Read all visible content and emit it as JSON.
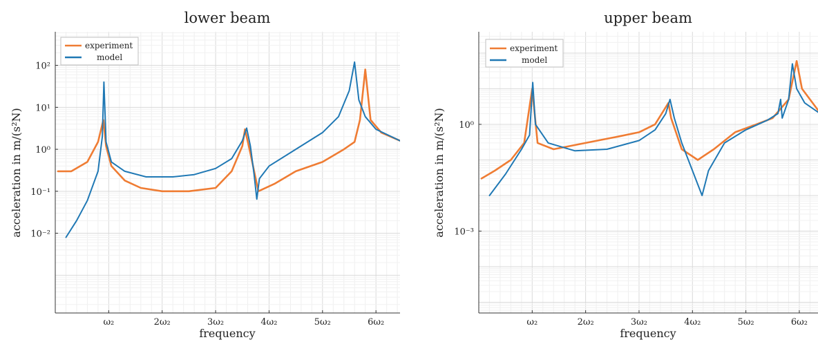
{
  "chart_data": [
    {
      "type": "line",
      "title": "lower beam",
      "xlabel": "frequency",
      "ylabel": "acceleration in m/(s²N)",
      "yscale": "log",
      "xlim": [
        0,
        6.45
      ],
      "ylim_log10": [
        -3.9,
        2.8
      ],
      "grid": true,
      "legend_position": "top-left",
      "x_ticks": [
        {
          "x": 1,
          "label": "ω₂"
        },
        {
          "x": 2,
          "label": "2ω₂"
        },
        {
          "x": 3,
          "label": "3ω₂"
        },
        {
          "x": 4,
          "label": "4ω₂"
        },
        {
          "x": 5,
          "label": "5ω₂"
        },
        {
          "x": 6,
          "label": "6ω₂"
        }
      ],
      "y_ticks": [
        {
          "exp": 2,
          "label": "10²"
        },
        {
          "exp": 1,
          "label": "10¹"
        },
        {
          "exp": 0,
          "label": "10⁰"
        },
        {
          "exp": -1,
          "label": "10⁻¹"
        },
        {
          "exp": -2,
          "label": "10⁻²"
        }
      ],
      "series": [
        {
          "name": "experiment",
          "color": "#ef7c33",
          "points": [
            [
              0.05,
              0.3
            ],
            [
              0.3,
              0.3
            ],
            [
              0.6,
              0.5
            ],
            [
              0.8,
              1.5
            ],
            [
              0.9,
              5.0
            ],
            [
              0.95,
              1.2
            ],
            [
              1.05,
              0.4
            ],
            [
              1.3,
              0.18
            ],
            [
              1.6,
              0.12
            ],
            [
              2.0,
              0.1
            ],
            [
              2.5,
              0.1
            ],
            [
              3.0,
              0.12
            ],
            [
              3.3,
              0.3
            ],
            [
              3.5,
              1.2
            ],
            [
              3.55,
              3.0
            ],
            [
              3.65,
              0.8
            ],
            [
              3.8,
              0.1
            ],
            [
              4.1,
              0.15
            ],
            [
              4.5,
              0.3
            ],
            [
              5.0,
              0.5
            ],
            [
              5.4,
              1.0
            ],
            [
              5.6,
              1.5
            ],
            [
              5.7,
              5.0
            ],
            [
              5.8,
              80
            ],
            [
              5.9,
              5.0
            ],
            [
              6.1,
              2.5
            ],
            [
              6.45,
              1.6
            ]
          ]
        },
        {
          "name": "model",
          "color": "#1f78b4",
          "points": [
            [
              0.2,
              0.008
            ],
            [
              0.4,
              0.02
            ],
            [
              0.6,
              0.06
            ],
            [
              0.8,
              0.3
            ],
            [
              0.88,
              2.0
            ],
            [
              0.91,
              40
            ],
            [
              0.95,
              1.5
            ],
            [
              1.05,
              0.5
            ],
            [
              1.3,
              0.3
            ],
            [
              1.7,
              0.22
            ],
            [
              2.2,
              0.22
            ],
            [
              2.6,
              0.25
            ],
            [
              3.0,
              0.35
            ],
            [
              3.3,
              0.6
            ],
            [
              3.5,
              1.6
            ],
            [
              3.58,
              3.2
            ],
            [
              3.65,
              1.2
            ],
            [
              3.72,
              0.25
            ],
            [
              3.77,
              0.065
            ],
            [
              3.82,
              0.2
            ],
            [
              4.0,
              0.4
            ],
            [
              4.5,
              1.0
            ],
            [
              5.0,
              2.5
            ],
            [
              5.3,
              6.0
            ],
            [
              5.5,
              25
            ],
            [
              5.6,
              120
            ],
            [
              5.68,
              15
            ],
            [
              5.8,
              6.0
            ],
            [
              6.0,
              3.0
            ],
            [
              6.45,
              1.6
            ]
          ]
        }
      ]
    },
    {
      "type": "line",
      "title": "upper beam",
      "xlabel": "frequency",
      "ylabel": "acceleration in m/(s²N)",
      "yscale": "log",
      "xlim": [
        0,
        6.35
      ],
      "ylim_log10": [
        -5.3,
        2.6
      ],
      "grid": true,
      "legend_position": "top-left",
      "x_ticks": [
        {
          "x": 1,
          "label": "ω₂"
        },
        {
          "x": 2,
          "label": "2ω₂"
        },
        {
          "x": 3,
          "label": "3ω₂"
        },
        {
          "x": 4,
          "label": "4ω₂"
        },
        {
          "x": 5,
          "label": "5ω₂"
        },
        {
          "x": 6,
          "label": "6ω₂"
        }
      ],
      "y_ticks": [
        {
          "exp": 0,
          "label": "10⁰"
        },
        {
          "exp": -3,
          "label": "10⁻³"
        }
      ],
      "series": [
        {
          "name": "experiment",
          "color": "#ef7c33",
          "points": [
            [
              0.05,
              0.03
            ],
            [
              0.3,
              0.05
            ],
            [
              0.6,
              0.1
            ],
            [
              0.85,
              0.3
            ],
            [
              1.0,
              10
            ],
            [
              1.1,
              0.3
            ],
            [
              1.4,
              0.2
            ],
            [
              2.0,
              0.3
            ],
            [
              2.6,
              0.45
            ],
            [
              3.0,
              0.6
            ],
            [
              3.3,
              1.0
            ],
            [
              3.55,
              4.0
            ],
            [
              3.6,
              1.5
            ],
            [
              3.8,
              0.2
            ],
            [
              4.1,
              0.1
            ],
            [
              4.4,
              0.2
            ],
            [
              4.8,
              0.6
            ],
            [
              5.2,
              1.0
            ],
            [
              5.5,
              1.5
            ],
            [
              5.8,
              5.0
            ],
            [
              5.95,
              60
            ],
            [
              6.05,
              10
            ],
            [
              6.35,
              2.5
            ]
          ]
        },
        {
          "name": "model",
          "color": "#1f78b4",
          "points": [
            [
              0.2,
              0.01
            ],
            [
              0.5,
              0.04
            ],
            [
              0.8,
              0.2
            ],
            [
              0.95,
              0.5
            ],
            [
              1.01,
              15
            ],
            [
              1.06,
              1.0
            ],
            [
              1.3,
              0.3
            ],
            [
              1.8,
              0.18
            ],
            [
              2.4,
              0.2
            ],
            [
              3.0,
              0.35
            ],
            [
              3.3,
              0.7
            ],
            [
              3.5,
              2.0
            ],
            [
              3.58,
              5.0
            ],
            [
              3.66,
              1.5
            ],
            [
              3.8,
              0.3
            ],
            [
              4.0,
              0.05
            ],
            [
              4.18,
              0.01
            ],
            [
              4.3,
              0.05
            ],
            [
              4.6,
              0.3
            ],
            [
              5.0,
              0.7
            ],
            [
              5.4,
              1.3
            ],
            [
              5.6,
              2.0
            ],
            [
              5.65,
              5.0
            ],
            [
              5.68,
              1.5
            ],
            [
              5.8,
              5.0
            ],
            [
              5.87,
              50
            ],
            [
              5.95,
              10
            ],
            [
              6.1,
              4.0
            ],
            [
              6.35,
              2.2
            ]
          ]
        }
      ]
    }
  ]
}
